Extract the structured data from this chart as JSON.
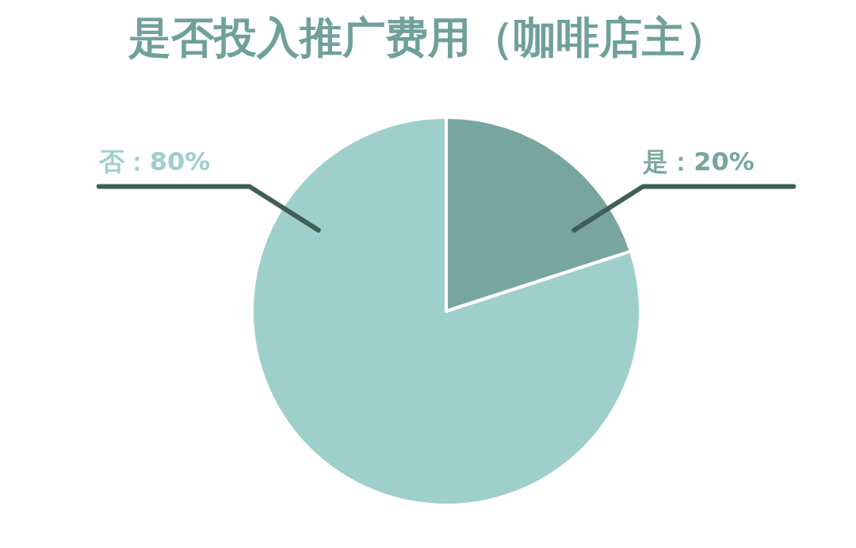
{
  "chart_data": {
    "type": "pie",
    "title": "是否投入推广费用（咖啡店主）",
    "categories": [
      "是",
      "否"
    ],
    "values": [
      20,
      80
    ],
    "colors": [
      "#78a69f",
      "#9ecfca"
    ],
    "value_labels": [
      "：20%",
      "：80%"
    ]
  }
}
